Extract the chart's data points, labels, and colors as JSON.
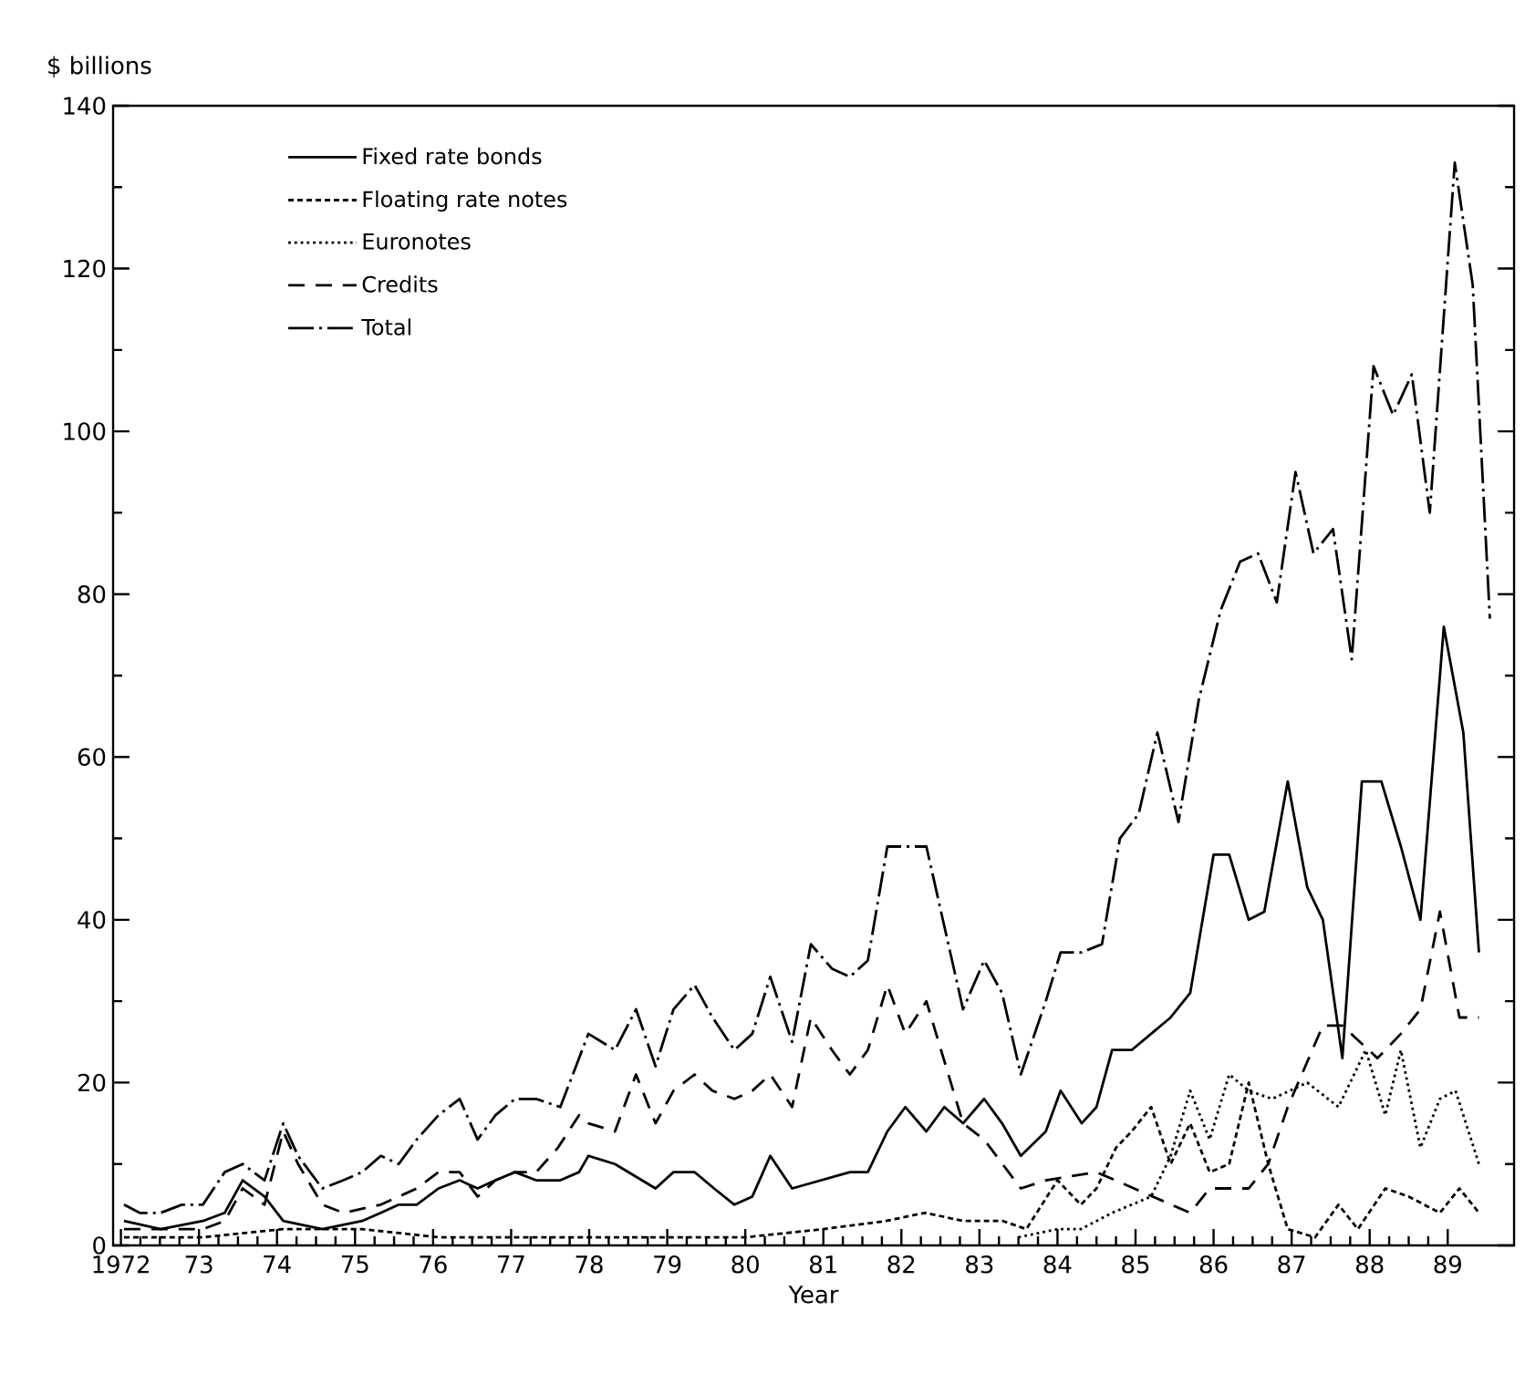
{
  "chart_data": {
    "type": "line",
    "ylabel": "$ billions",
    "xlabel": "Year",
    "xlim": [
      1971.9,
      1989.85
    ],
    "ylim": [
      0,
      140
    ],
    "xticks": [
      {
        "value": 1972,
        "label": "1972"
      },
      {
        "value": 1973,
        "label": "73"
      },
      {
        "value": 1974,
        "label": "74"
      },
      {
        "value": 1975,
        "label": "75"
      },
      {
        "value": 1976,
        "label": "76"
      },
      {
        "value": 1977,
        "label": "77"
      },
      {
        "value": 1978,
        "label": "78"
      },
      {
        "value": 1979,
        "label": "79"
      },
      {
        "value": 1980,
        "label": "80"
      },
      {
        "value": 1981,
        "label": "81"
      },
      {
        "value": 1982,
        "label": "82"
      },
      {
        "value": 1983,
        "label": "83"
      },
      {
        "value": 1984,
        "label": "84"
      },
      {
        "value": 1985,
        "label": "85"
      },
      {
        "value": 1986,
        "label": "86"
      },
      {
        "value": 1987,
        "label": "87"
      },
      {
        "value": 1988,
        "label": "88"
      },
      {
        "value": 1989,
        "label": "89"
      }
    ],
    "yticks": [
      0,
      20,
      40,
      60,
      80,
      100,
      120,
      140
    ],
    "legend": "top left",
    "series": [
      {
        "name": "Fixed rate bonds",
        "color": "#000000",
        "line_style": "solid",
        "x": [
          1972.04,
          1972.51,
          1973.05,
          1973.33,
          1973.56,
          1973.84,
          1974.08,
          1974.58,
          1975.09,
          1975.33,
          1975.56,
          1975.79,
          1976.07,
          1976.34,
          1976.57,
          1976.8,
          1977.05,
          1977.32,
          1977.63,
          1977.87,
          1977.99,
          1978.33,
          1978.85,
          1979.08,
          1979.35,
          1979.6,
          1979.86,
          1980.09,
          1980.32,
          1980.6,
          1980.97,
          1981.34,
          1981.57,
          1981.82,
          1982.05,
          1982.32,
          1982.55,
          1982.79,
          1983.06,
          1983.29,
          1983.53,
          1983.85,
          1984.04,
          1984.31,
          1984.5,
          1984.7,
          1984.95,
          1985.2,
          1985.45,
          1985.7,
          1986.0,
          1986.2,
          1986.45,
          1986.65,
          1986.95,
          1987.2,
          1987.4,
          1987.65,
          1987.9,
          1988.15,
          1988.4,
          1988.65,
          1988.95,
          1989.2,
          1989.4
        ],
        "values": [
          3,
          2,
          3,
          4,
          8,
          6,
          3,
          2,
          3,
          4,
          5,
          5,
          7,
          8,
          7,
          8,
          9,
          8,
          8,
          9,
          11,
          10,
          7,
          9,
          9,
          7,
          5,
          6,
          11,
          7,
          8,
          9,
          9,
          14,
          17,
          14,
          17,
          15,
          18,
          15,
          11,
          14,
          19,
          15,
          17,
          24,
          24,
          26,
          28,
          31,
          48,
          48,
          40,
          41,
          57,
          44,
          40,
          23,
          57,
          57,
          49,
          40,
          76,
          63,
          36
        ]
      },
      {
        "name": "Floating rate notes",
        "color": "#000000",
        "line_style": "dashed",
        "x": [
          1972.04,
          1973.05,
          1974.08,
          1975.09,
          1976.07,
          1977.05,
          1978.0,
          1979.0,
          1980.0,
          1981.0,
          1981.8,
          1982.3,
          1982.8,
          1983.3,
          1983.6,
          1984.0,
          1984.3,
          1984.5,
          1984.75,
          1984.95,
          1985.2,
          1985.45,
          1985.7,
          1985.95,
          1986.2,
          1986.45,
          1986.7,
          1986.95,
          1987.3,
          1987.6,
          1987.85,
          1988.2,
          1988.5,
          1988.9,
          1989.15,
          1989.4
        ],
        "values": [
          1,
          1,
          2,
          2,
          1,
          1,
          1,
          1,
          1,
          2,
          3,
          4,
          3,
          3,
          2,
          8,
          5,
          7,
          12,
          14,
          17,
          10,
          15,
          9,
          10,
          20,
          10,
          2,
          1,
          5,
          2,
          7,
          6,
          4,
          7,
          4
        ]
      },
      {
        "name": "Euronotes",
        "color": "#000000",
        "line_style": "dotted",
        "x": [
          1983.5,
          1984.0,
          1984.3,
          1984.7,
          1985.2,
          1985.45,
          1985.7,
          1985.95,
          1986.2,
          1986.45,
          1986.75,
          1987.2,
          1987.6,
          1987.95,
          1988.2,
          1988.4,
          1988.65,
          1988.9,
          1989.1,
          1989.4
        ],
        "values": [
          1,
          2,
          2,
          4,
          6,
          11,
          19,
          13,
          21,
          19,
          18,
          20,
          17,
          24,
          16,
          24,
          12,
          18,
          19,
          10
        ]
      },
      {
        "name": "Credits",
        "color": "#000000",
        "line_style": "long dashed",
        "x": [
          1972.04,
          1972.51,
          1973.05,
          1973.33,
          1973.56,
          1973.84,
          1974.08,
          1974.27,
          1974.58,
          1974.85,
          1975.33,
          1975.56,
          1975.79,
          1976.07,
          1976.34,
          1976.57,
          1976.8,
          1977.05,
          1977.32,
          1977.6,
          1977.87,
          1977.99,
          1978.33,
          1978.6,
          1978.85,
          1979.08,
          1979.35,
          1979.58,
          1979.86,
          1980.09,
          1980.32,
          1980.6,
          1980.84,
          1981.11,
          1981.34,
          1981.57,
          1981.82,
          1982.05,
          1982.32,
          1982.79,
          1983.06,
          1983.53,
          1983.85,
          1984.5,
          1985.7,
          1985.95,
          1986.45,
          1986.7,
          1986.95,
          1987.4,
          1987.65,
          1988.1,
          1988.4,
          1988.65,
          1988.9,
          1989.15,
          1989.4
        ],
        "values": [
          2,
          2,
          2,
          3,
          7,
          5,
          14,
          10,
          5,
          4,
          5,
          6,
          7,
          9,
          9,
          6,
          8,
          9,
          9,
          12,
          16,
          15,
          14,
          21,
          15,
          19,
          21,
          19,
          18,
          19,
          21,
          17,
          28,
          24,
          21,
          24,
          32,
          26,
          30,
          15,
          13,
          7,
          8,
          9,
          4,
          7,
          7,
          10,
          17,
          27,
          27,
          23,
          26,
          29,
          41,
          28,
          28
        ]
      },
      {
        "name": "Total",
        "color": "#000000",
        "line_style": "dashdot",
        "x": [
          1972.04,
          1972.24,
          1972.51,
          1972.78,
          1973.05,
          1973.33,
          1973.56,
          1973.84,
          1974.08,
          1974.27,
          1974.58,
          1974.85,
          1975.09,
          1975.33,
          1975.56,
          1975.79,
          1976.07,
          1976.34,
          1976.57,
          1976.8,
          1977.05,
          1977.32,
          1977.63,
          1977.87,
          1977.99,
          1978.33,
          1978.6,
          1978.85,
          1979.08,
          1979.35,
          1979.58,
          1979.86,
          1980.09,
          1980.32,
          1980.6,
          1980.84,
          1981.11,
          1981.34,
          1981.57,
          1981.82,
          1982.05,
          1982.32,
          1982.79,
          1983.06,
          1983.29,
          1983.53,
          1983.85,
          1984.04,
          1984.31,
          1984.57,
          1984.8,
          1985.04,
          1985.28,
          1985.55,
          1985.81,
          1986.09,
          1986.34,
          1986.57,
          1986.81,
          1987.05,
          1987.28,
          1987.53,
          1987.77,
          1988.05,
          1988.3,
          1988.54,
          1988.77,
          1989.09,
          1989.32,
          1989.54
        ],
        "values": [
          5,
          4,
          4,
          5,
          5,
          9,
          10,
          8,
          15,
          11,
          7,
          8,
          9,
          11,
          10,
          13,
          16,
          18,
          13,
          16,
          18,
          18,
          17,
          23,
          26,
          24,
          29,
          22,
          29,
          32,
          28,
          24,
          26,
          33,
          25,
          37,
          34,
          33,
          35,
          49,
          49,
          49,
          29,
          35,
          31,
          21,
          30,
          36,
          36,
          37,
          50,
          53,
          63,
          52,
          67,
          78,
          84,
          85,
          79,
          95,
          85,
          88,
          72,
          108,
          102,
          107,
          90,
          133,
          118,
          77
        ]
      }
    ]
  }
}
